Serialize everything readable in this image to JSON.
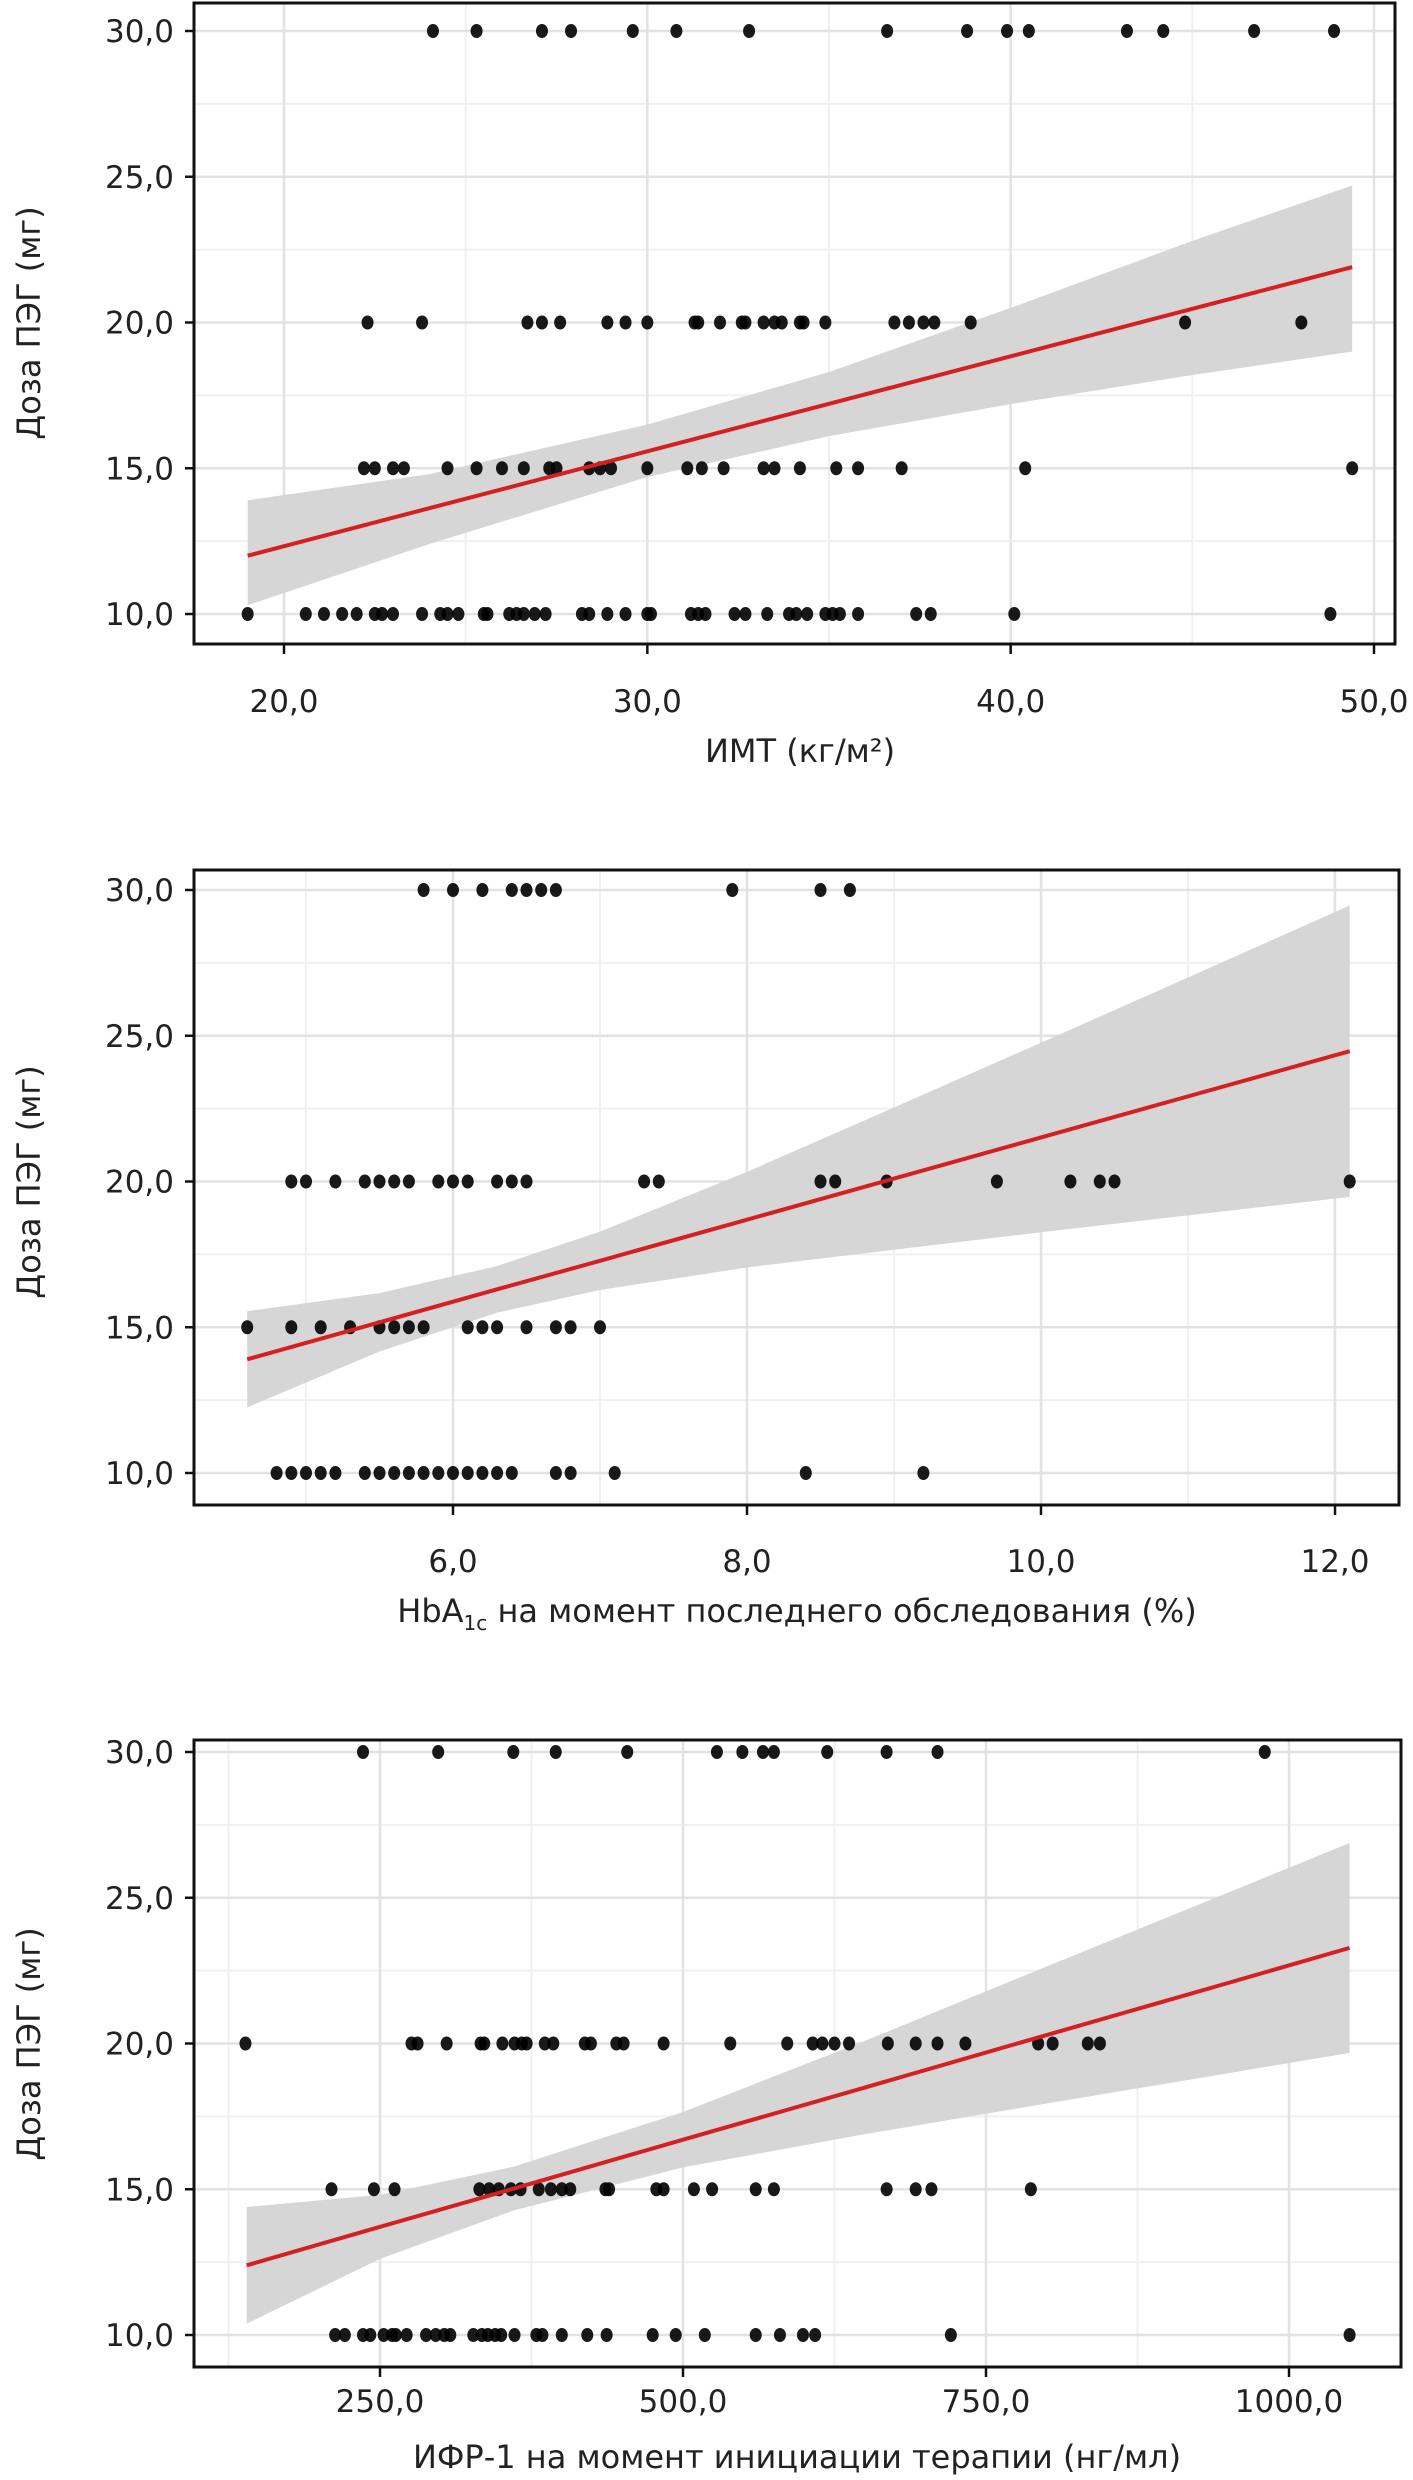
{
  "y_tick_labels": [
    "10,0",
    "15,0",
    "20,0",
    "25,0",
    "30,0"
  ],
  "chart_data": [
    {
      "type": "scatter",
      "title": "",
      "xlabel": "ИМТ (кг/м²)",
      "ylabel": "Доза ПЭГ (мг)",
      "x_ticks": [
        20,
        30,
        40,
        50
      ],
      "x_tick_labels": [
        "20,0",
        "30,0",
        "40,0",
        "50,0"
      ],
      "y_ticks": [
        10,
        15,
        20,
        25,
        30
      ],
      "ylim": [
        10,
        30
      ],
      "grid": true,
      "point_color": "#000000",
      "groups": [
        {
          "y": 30,
          "x": [
            24.1,
            25.3,
            27.1,
            27.9,
            29.6,
            30.8,
            32.8,
            36.6,
            38.8,
            39.9,
            40.5,
            43.2,
            44.2,
            46.7,
            48.9
          ]
        },
        {
          "y": 20,
          "x": [
            22.3,
            23.8,
            26.7,
            27.1,
            27.6,
            28.9,
            29.4,
            30.0,
            31.3,
            31.4,
            32.0,
            32.6,
            32.7,
            33.2,
            33.5,
            33.7,
            34.2,
            34.3,
            34.9,
            36.8,
            37.2,
            37.6,
            37.9,
            38.9,
            44.8,
            48.0
          ]
        },
        {
          "y": 15,
          "x": [
            22.2,
            22.5,
            23.0,
            23.3,
            24.5,
            25.3,
            26.0,
            26.6,
            27.3,
            27.5,
            28.4,
            28.7,
            29.0,
            30.0,
            31.1,
            31.5,
            32.1,
            33.2,
            33.5,
            34.2,
            35.2,
            35.8,
            37.0,
            40.4,
            49.4
          ]
        },
        {
          "y": 10,
          "x": [
            19.0,
            20.6,
            21.1,
            21.6,
            22.0,
            22.5,
            22.7,
            23.0,
            23.8,
            24.3,
            24.5,
            24.8,
            25.5,
            25.6,
            26.2,
            26.4,
            26.6,
            26.9,
            27.2,
            28.2,
            28.4,
            28.9,
            29.4,
            30.0,
            30.1,
            31.2,
            31.4,
            31.6,
            32.4,
            32.7,
            33.3,
            33.9,
            34.1,
            34.4,
            34.9,
            35.1,
            35.3,
            35.8,
            37.4,
            37.8,
            40.1,
            48.8
          ]
        }
      ],
      "fit": {
        "color": "#d42020",
        "band_color": "#d4d4d4",
        "x": [
          19,
          24,
          30,
          35,
          40,
          45,
          49.4
        ],
        "y": [
          12.0,
          13.63,
          15.58,
          17.21,
          18.84,
          20.47,
          21.9
        ],
        "lower": [
          10.3,
          12.4,
          14.7,
          16.1,
          17.2,
          18.2,
          19.0
        ],
        "upper": [
          13.9,
          14.8,
          16.5,
          18.3,
          20.5,
          22.8,
          24.7
        ]
      }
    },
    {
      "type": "scatter",
      "title": "",
      "xlabel_parts": [
        "HbA",
        "1c",
        " на момент последнего обследования (%)"
      ],
      "ylabel": "Доза ПЭГ (мг)",
      "x_ticks": [
        6,
        8,
        10,
        12
      ],
      "x_tick_labels": [
        "6,0",
        "8,0",
        "10,0",
        "12,0"
      ],
      "y_ticks": [
        10,
        15,
        20,
        25,
        30
      ],
      "ylim": [
        10,
        30
      ],
      "grid": true,
      "point_color": "#000000",
      "groups": [
        {
          "y": 30,
          "x": [
            5.8,
            6.0,
            6.2,
            6.4,
            6.5,
            6.6,
            6.7,
            7.9,
            8.5,
            8.7
          ]
        },
        {
          "y": 20,
          "x": [
            4.9,
            5.0,
            5.2,
            5.4,
            5.5,
            5.6,
            5.7,
            5.9,
            6.0,
            6.1,
            6.3,
            6.4,
            6.5,
            7.3,
            7.4,
            8.5,
            8.6,
            8.95,
            9.7,
            10.2,
            10.4,
            10.5,
            12.1
          ]
        },
        {
          "y": 15,
          "x": [
            4.6,
            4.9,
            5.1,
            5.3,
            5.5,
            5.6,
            5.7,
            5.8,
            6.1,
            6.2,
            6.3,
            6.5,
            6.7,
            6.8,
            7.0
          ]
        },
        {
          "y": 10,
          "x": [
            4.8,
            4.9,
            5.0,
            5.1,
            5.2,
            5.4,
            5.5,
            5.6,
            5.7,
            5.8,
            5.9,
            6.0,
            6.1,
            6.2,
            6.3,
            6.4,
            6.7,
            6.8,
            7.1,
            8.4,
            9.2
          ]
        }
      ],
      "fit": {
        "color": "#d42020",
        "band_color": "#d4d4d4",
        "x": [
          4.6,
          5.5,
          6.3,
          7,
          8,
          9,
          10,
          11,
          12.1
        ],
        "y": [
          13.9,
          15.17,
          16.3,
          17.28,
          18.69,
          20.1,
          21.51,
          22.92,
          24.47
        ],
        "lower": [
          12.25,
          14.17,
          15.5,
          16.28,
          17.05,
          17.66,
          18.26,
          18.84,
          19.47
        ],
        "upper": [
          15.55,
          16.17,
          17.1,
          18.28,
          20.33,
          22.54,
          24.76,
          27.0,
          29.47
        ]
      }
    },
    {
      "type": "scatter",
      "title": "",
      "xlabel": "ИФР-1 на момент инициации терапии (нг/мл)",
      "ylabel": "Доза ПЭГ (мг)",
      "x_ticks": [
        250,
        500,
        750,
        1000
      ],
      "x_tick_labels": [
        "250,0",
        "500,0",
        "750,0",
        "1000,0"
      ],
      "y_ticks": [
        10,
        15,
        20,
        25,
        30
      ],
      "ylim": [
        10,
        30
      ],
      "grid": true,
      "point_color": "#000000",
      "groups": [
        {
          "y": 30,
          "x": [
            236,
            298,
            360,
            395,
            454,
            528,
            549,
            566,
            575,
            619,
            668,
            710,
            980
          ]
        },
        {
          "y": 20,
          "x": [
            139,
            276,
            281,
            305,
            333,
            336,
            351,
            361,
            367,
            371,
            386,
            393,
            419,
            424,
            445,
            451,
            484,
            539,
            586,
            607,
            615,
            625,
            637,
            669,
            692,
            710,
            733,
            793,
            805,
            834,
            844
          ]
        },
        {
          "y": 15,
          "x": [
            210,
            245,
            262,
            332,
            340,
            348,
            358,
            366,
            381,
            391,
            400,
            407,
            436,
            439,
            478,
            484,
            509,
            524,
            560,
            575,
            668,
            692,
            705,
            787
          ]
        },
        {
          "y": 10,
          "x": [
            213,
            221,
            236,
            242,
            253,
            260,
            263,
            272,
            288,
            296,
            303,
            308,
            327,
            334,
            339,
            345,
            350,
            361,
            379,
            384,
            400,
            421,
            437,
            475,
            494,
            518,
            560,
            580,
            599,
            609,
            721,
            1050
          ]
        }
      ],
      "fit": {
        "color": "#d42020",
        "band_color": "#d4d4d4",
        "x": [
          140,
          250,
          360,
          500,
          650,
          800,
          950,
          1050
        ],
        "y": [
          12.39,
          13.71,
          15.02,
          16.7,
          18.49,
          20.29,
          22.08,
          23.28
        ],
        "lower": [
          10.39,
          12.61,
          14.27,
          15.75,
          16.89,
          17.94,
          18.98,
          19.68
        ],
        "upper": [
          14.39,
          14.81,
          15.77,
          17.65,
          20.09,
          22.64,
          25.18,
          26.88
        ]
      }
    }
  ]
}
